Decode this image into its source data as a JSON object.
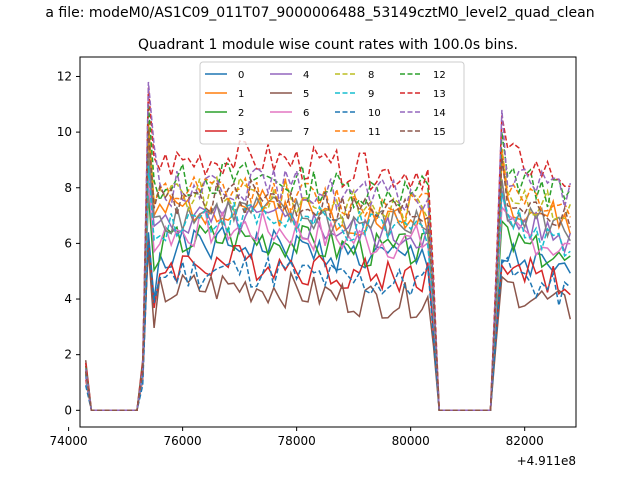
{
  "chart_data": {
    "type": "line",
    "suptitle": "a file: modeM0/AS1C09_011T07_9000006488_53149cztM0_level2_quad_clean",
    "title": "Quadrant 1 module wise count rates with 100.0s bins.",
    "xlabel": "",
    "ylabel": "",
    "x_offset_label": "+4.911e8",
    "xlim": [
      74200,
      82900
    ],
    "ylim": [
      -0.6,
      12.7
    ],
    "xticks": [
      74000,
      76000,
      78000,
      80000,
      82000
    ],
    "yticks": [
      0,
      2,
      4,
      6,
      8,
      10,
      12
    ],
    "grid": false,
    "legend_position": "top-center",
    "x": [
      74300,
      74400,
      74500,
      74600,
      74700,
      74800,
      74900,
      75000,
      75100,
      75200,
      75300,
      75400,
      75500,
      75600,
      75700,
      75800,
      75900,
      76000,
      76100,
      76200,
      76300,
      76400,
      76500,
      76600,
      76700,
      76800,
      76900,
      77000,
      77100,
      77200,
      77300,
      77400,
      77500,
      77600,
      77700,
      77800,
      77900,
      78000,
      78100,
      78200,
      78300,
      78400,
      78500,
      78600,
      78700,
      78800,
      78900,
      79000,
      79100,
      79200,
      79300,
      79400,
      79500,
      79600,
      79700,
      79800,
      79900,
      80000,
      80100,
      80200,
      80300,
      80400,
      80500,
      80600,
      80700,
      80800,
      80900,
      81000,
      81100,
      81200,
      81300,
      81400,
      81500,
      81600,
      81700,
      81800,
      81900,
      82000,
      82100,
      82200,
      82300,
      82400,
      82500,
      82600,
      82700,
      82800
    ],
    "series": [
      {
        "name": "0",
        "style": "solid",
        "color": "#1f77b4",
        "base": 5.7,
        "peak": 6.4,
        "start": 1.2,
        "r1": 5.6,
        "seed": 1
      },
      {
        "name": "1",
        "style": "solid",
        "color": "#ff7f0e",
        "base": 7.1,
        "peak": 10.0,
        "start": 1.3,
        "r1": 7.6,
        "seed": 2
      },
      {
        "name": "2",
        "style": "solid",
        "color": "#2ca02c",
        "base": 6.0,
        "peak": 7.8,
        "start": 1.3,
        "r1": 6.2,
        "seed": 3
      },
      {
        "name": "3",
        "style": "solid",
        "color": "#d62728",
        "base": 5.1,
        "peak": 6.2,
        "start": 1.1,
        "r1": 5.4,
        "seed": 4
      },
      {
        "name": "4",
        "style": "solid",
        "color": "#9467bd",
        "base": 6.6,
        "peak": 8.9,
        "start": 1.3,
        "r1": 7.0,
        "seed": 5
      },
      {
        "name": "5",
        "style": "solid",
        "color": "#8c564b",
        "base": 4.2,
        "peak": 5.8,
        "start": 1.8,
        "r1": 4.5,
        "seed": 6
      },
      {
        "name": "6",
        "style": "solid",
        "color": "#e377c2",
        "base": 6.3,
        "peak": 8.3,
        "start": 1.2,
        "r1": 6.6,
        "seed": 7
      },
      {
        "name": "7",
        "style": "solid",
        "color": "#7f7f7f",
        "base": 6.9,
        "peak": 9.3,
        "start": 1.4,
        "r1": 7.3,
        "seed": 8
      },
      {
        "name": "8",
        "style": "dashed",
        "color": "#bcbd22",
        "base": 7.5,
        "peak": 10.4,
        "start": 1.5,
        "r1": 8.0,
        "seed": 9
      },
      {
        "name": "9",
        "style": "dashed",
        "color": "#17becf",
        "base": 6.7,
        "peak": 8.8,
        "start": 1.3,
        "r1": 6.9,
        "seed": 10
      },
      {
        "name": "10",
        "style": "dashed",
        "color": "#1f77b4",
        "base": 4.8,
        "peak": 6.3,
        "start": 0.9,
        "r1": 5.0,
        "seed": 11
      },
      {
        "name": "11",
        "style": "dashed",
        "color": "#ff7f0e",
        "base": 7.6,
        "peak": 10.4,
        "start": 1.4,
        "r1": 8.1,
        "seed": 12
      },
      {
        "name": "12",
        "style": "dashed",
        "color": "#2ca02c",
        "base": 8.1,
        "peak": 11.0,
        "start": 1.6,
        "r1": 8.5,
        "seed": 13
      },
      {
        "name": "13",
        "style": "dashed",
        "color": "#d62728",
        "base": 8.8,
        "peak": 11.6,
        "start": 1.7,
        "r1": 9.2,
        "seed": 14
      },
      {
        "name": "14",
        "style": "dashed",
        "color": "#9467bd",
        "base": 7.9,
        "peak": 11.8,
        "start": 1.5,
        "r1": 8.7,
        "seed": 15
      },
      {
        "name": "15",
        "style": "dashed",
        "color": "#8c564b",
        "base": 7.4,
        "peak": 10.1,
        "start": 1.4,
        "r1": 7.7,
        "seed": 16
      }
    ]
  }
}
